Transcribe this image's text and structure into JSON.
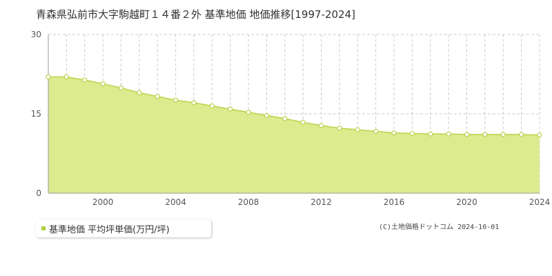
{
  "chart_data": {
    "type": "area",
    "title": "青森県弘前市大字駒越町１４番２外 基準地価 地価推移[1997-2024]",
    "xlim": [
      1997,
      2024
    ],
    "ylim": [
      0,
      30
    ],
    "yticks": [
      0,
      15,
      30
    ],
    "xticks": [
      2000,
      2004,
      2008,
      2012,
      2016,
      2020,
      2024
    ],
    "grid": true,
    "legend_position": "bottom-left",
    "series": [
      {
        "name": "基準地価 平均坪単価(万円/坪)",
        "color": "#c8e05a",
        "x": [
          1997,
          1998,
          1999,
          2000,
          2001,
          2002,
          2003,
          2004,
          2005,
          2006,
          2007,
          2008,
          2009,
          2010,
          2011,
          2012,
          2013,
          2014,
          2015,
          2016,
          2017,
          2018,
          2019,
          2020,
          2021,
          2022,
          2023,
          2024
        ],
        "y": [
          22.0,
          22.0,
          21.4,
          20.7,
          19.9,
          19.0,
          18.3,
          17.6,
          17.1,
          16.5,
          15.9,
          15.3,
          14.7,
          14.1,
          13.4,
          12.8,
          12.3,
          12.0,
          11.7,
          11.4,
          11.3,
          11.2,
          11.2,
          11.1,
          11.1,
          11.1,
          11.1,
          11.0
        ]
      }
    ]
  },
  "legend": {
    "label": "基準地価 平均坪単価(万円/坪)"
  },
  "credit": "(C)土地価格ドットコム 2024-10-01"
}
